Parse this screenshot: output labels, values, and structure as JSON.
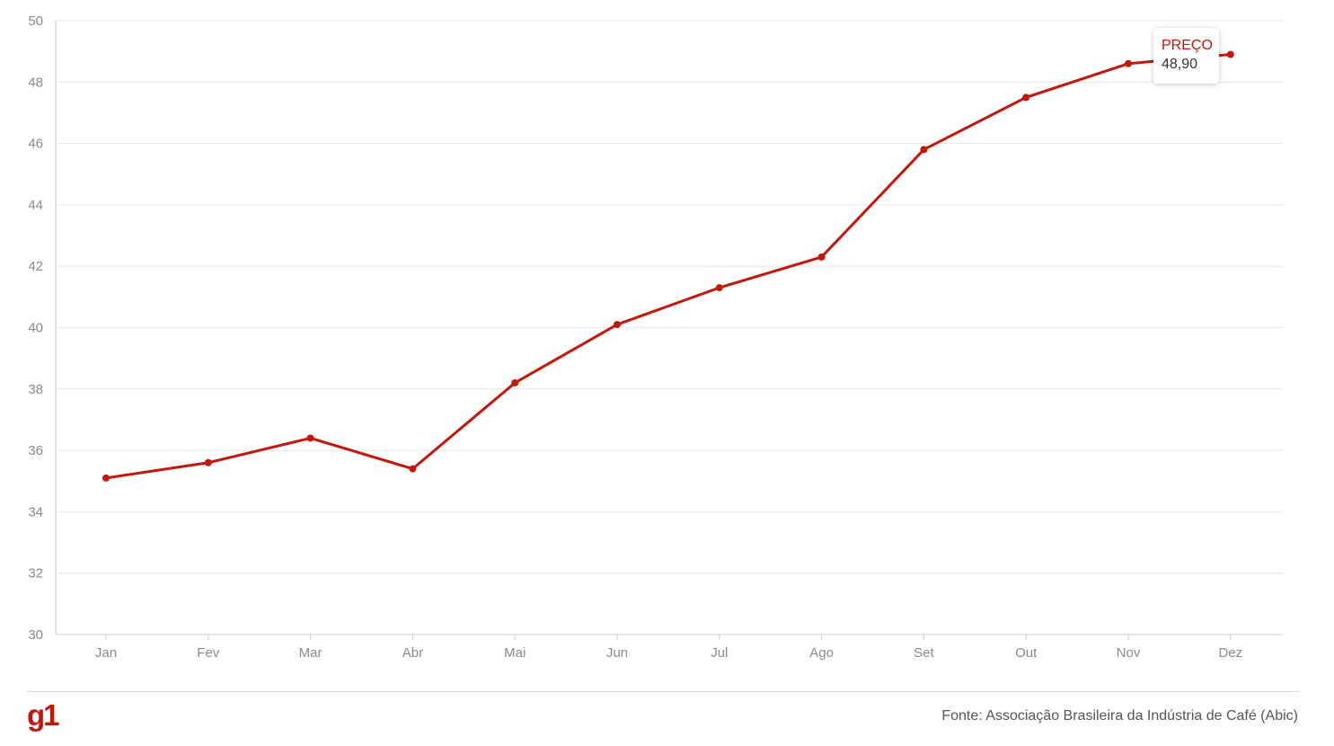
{
  "chart_data": {
    "type": "line",
    "categories": [
      "Jan",
      "Fev",
      "Mar",
      "Abr",
      "Mai",
      "Jun",
      "Jul",
      "Ago",
      "Set",
      "Out",
      "Nov",
      "Dez"
    ],
    "series": [
      {
        "values": [
          35.1,
          35.6,
          36.4,
          35.4,
          38.2,
          40.1,
          41.3,
          42.3,
          45.8,
          47.5,
          48.6,
          48.9
        ]
      }
    ],
    "ylim": [
      30,
      50
    ],
    "yticks": [
      30,
      32,
      34,
      36,
      38,
      40,
      42,
      44,
      46,
      48,
      50
    ],
    "grid": true,
    "color": "#c4170c"
  },
  "tooltip": {
    "label": "PREÇO",
    "value": "48,90",
    "category": "Dez"
  },
  "footer": {
    "logo": "g1",
    "source": "Fonte: Associação Brasileira da Indústria de Café (Abic)"
  },
  "colors": {
    "accent": "#c4170c"
  }
}
